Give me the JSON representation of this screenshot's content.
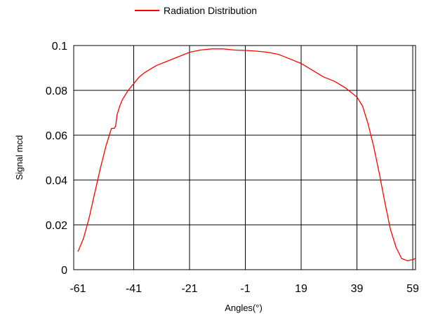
{
  "chart_data": {
    "type": "line",
    "title": "",
    "xlabel": "Angles(°)",
    "ylabel": "Signal mcd",
    "xlim": [
      -61,
      60
    ],
    "ylim": [
      0,
      0.1
    ],
    "x_ticks": [
      "-61",
      "-41",
      "-21",
      "-1",
      "19",
      "39",
      "59"
    ],
    "y_ticks": [
      "0",
      "0.02",
      "0.04",
      "0.06",
      "0.08",
      "0.1"
    ],
    "grid": true,
    "legend_position": "top",
    "series": [
      {
        "name": "Radiation Distribution",
        "color": "#ff0000",
        "x": [
          -61,
          -59,
          -57,
          -55,
          -53,
          -51,
          -49,
          -48,
          -47.5,
          -47,
          -46,
          -45,
          -43,
          -41,
          -39,
          -37,
          -33,
          -29,
          -25,
          -21,
          -17,
          -13,
          -9,
          -5,
          -1,
          3,
          7,
          11,
          15,
          19,
          23,
          27,
          31,
          35,
          37,
          39,
          41,
          43,
          45,
          47,
          49,
          51,
          53,
          55,
          57,
          59,
          60
        ],
        "y": [
          0.008,
          0.014,
          0.023,
          0.034,
          0.045,
          0.055,
          0.063,
          0.063,
          0.064,
          0.069,
          0.073,
          0.076,
          0.08,
          0.083,
          0.086,
          0.088,
          0.091,
          0.093,
          0.095,
          0.097,
          0.098,
          0.0985,
          0.0985,
          0.098,
          0.0978,
          0.0975,
          0.097,
          0.096,
          0.094,
          0.092,
          0.089,
          0.086,
          0.084,
          0.081,
          0.079,
          0.077,
          0.073,
          0.065,
          0.055,
          0.043,
          0.03,
          0.018,
          0.01,
          0.005,
          0.004,
          0.0045,
          0.005
        ]
      }
    ]
  }
}
